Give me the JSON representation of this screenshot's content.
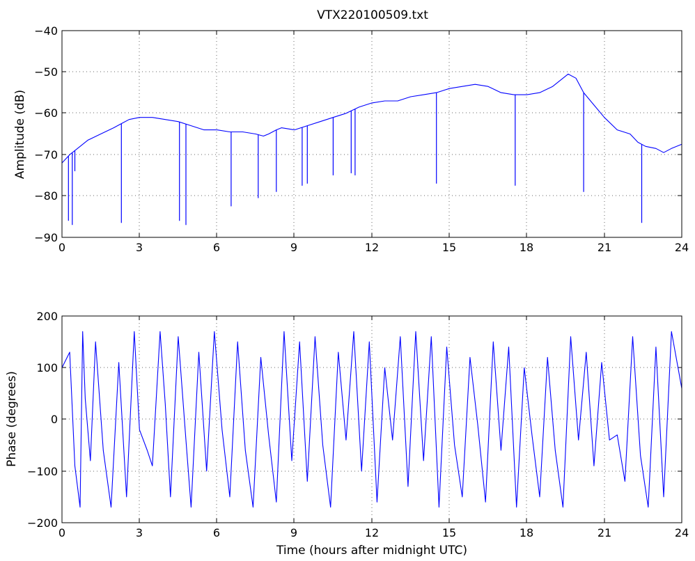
{
  "chart_data": [
    {
      "type": "line",
      "title": "VTX220100509.txt",
      "xlabel": "",
      "ylabel": "Amplitude (dB)",
      "xlim": [
        0,
        24
      ],
      "ylim": [
        -90,
        -40
      ],
      "xticks": [
        "0",
        "3",
        "6",
        "9",
        "12",
        "15",
        "18",
        "21",
        "24"
      ],
      "yticks": [
        "−90",
        "−80",
        "−70",
        "−60",
        "−50",
        "−40"
      ],
      "grid": true,
      "color": "#0000ff",
      "series": [
        {
          "x": [
            0,
            0.3,
            0.6,
            1.0,
            1.5,
            2.0,
            2.3,
            2.6,
            3.0,
            3.5,
            4.0,
            4.5,
            5.0,
            5.5,
            6.0,
            6.5,
            7.0,
            7.5,
            7.8,
            8.0,
            8.3,
            8.5,
            9.0,
            9.5,
            10.0,
            10.5,
            11.0,
            11.5,
            12.0,
            12.5,
            13.0,
            13.5,
            14.0,
            14.5,
            15.0,
            15.5,
            16.0,
            16.5,
            17.0,
            17.5,
            18.0,
            18.5,
            19.0,
            19.3,
            19.6,
            19.9,
            20.2,
            20.6,
            21.0,
            21.5,
            22.0,
            22.3,
            22.6,
            23.0,
            23.3,
            23.6,
            24.0
          ],
          "values": [
            -72,
            -70,
            -68.5,
            -66.5,
            -65,
            -63.5,
            -62.5,
            -61.5,
            -61,
            -61,
            -61.5,
            -62,
            -63,
            -64,
            -64,
            -64.5,
            -64.5,
            -65,
            -65.5,
            -65,
            -64,
            -63.5,
            -64,
            -63,
            -62,
            -61,
            -60,
            -58.5,
            -57.5,
            -57,
            -57,
            -56,
            -55.5,
            -55,
            -54,
            -53.5,
            -53,
            -53.5,
            -55,
            -55.5,
            -55.5,
            -55,
            -53.5,
            -52,
            -50.5,
            -51.5,
            -55,
            -58,
            -61,
            -64,
            -65,
            -67,
            -68,
            -68.5,
            -69.5,
            -68.5,
            -67.5
          ],
          "spikes": [
            [
              0.25,
              -86
            ],
            [
              0.4,
              -87
            ],
            [
              0.5,
              -74
            ],
            [
              2.3,
              -86.5
            ],
            [
              4.55,
              -86
            ],
            [
              4.8,
              -87
            ],
            [
              6.55,
              -82.5
            ],
            [
              7.6,
              -80.5
            ],
            [
              8.3,
              -79
            ],
            [
              9.3,
              -77.5
            ],
            [
              9.5,
              -77
            ],
            [
              10.5,
              -75
            ],
            [
              11.2,
              -74.5
            ],
            [
              11.35,
              -75
            ],
            [
              14.5,
              -77
            ],
            [
              17.55,
              -77.5
            ],
            [
              20.2,
              -79
            ],
            [
              22.45,
              -86.5
            ]
          ]
        }
      ]
    },
    {
      "type": "line",
      "title": "",
      "xlabel": "Time (hours after midnight UTC)",
      "ylabel": "Phase (degrees)",
      "xlim": [
        0,
        24
      ],
      "ylim": [
        -200,
        200
      ],
      "xticks": [
        "0",
        "3",
        "6",
        "9",
        "12",
        "15",
        "18",
        "21",
        "24"
      ],
      "yticks": [
        "−200",
        "−100",
        "0",
        "100",
        "200"
      ],
      "grid": true,
      "color": "#0000ff",
      "series": [
        {
          "x": [
            0,
            0.3,
            0.5,
            0.7,
            0.8,
            0.9,
            1.1,
            1.3,
            1.6,
            1.9,
            2.2,
            2.5,
            2.8,
            3.0,
            3.3,
            3.5,
            3.8,
            4.0,
            4.2,
            4.5,
            4.8,
            5.0,
            5.3,
            5.6,
            5.9,
            6.2,
            6.5,
            6.8,
            7.1,
            7.4,
            7.7,
            8.0,
            8.3,
            8.6,
            8.9,
            9.2,
            9.5,
            9.8,
            10.1,
            10.4,
            10.7,
            11.0,
            11.3,
            11.6,
            11.9,
            12.2,
            12.5,
            12.8,
            13.1,
            13.4,
            13.7,
            14.0,
            14.3,
            14.6,
            14.9,
            15.2,
            15.5,
            15.8,
            16.1,
            16.4,
            16.7,
            17.0,
            17.3,
            17.6,
            17.9,
            18.2,
            18.5,
            18.8,
            19.1,
            19.4,
            19.7,
            20.0,
            20.3,
            20.6,
            20.9,
            21.2,
            21.5,
            21.8,
            22.1,
            22.4,
            22.7,
            23.0,
            23.3,
            23.6,
            24.0
          ],
          "values": [
            100,
            130,
            -90,
            -170,
            170,
            40,
            -80,
            150,
            -60,
            -170,
            110,
            -150,
            170,
            -20,
            -60,
            -90,
            170,
            30,
            -150,
            160,
            -40,
            -170,
            130,
            -100,
            170,
            -20,
            -150,
            150,
            -60,
            -170,
            120,
            -30,
            -160,
            170,
            -80,
            150,
            -120,
            160,
            -50,
            -170,
            130,
            -40,
            170,
            -100,
            150,
            -160,
            100,
            -40,
            160,
            -130,
            170,
            -80,
            160,
            -170,
            140,
            -50,
            -150,
            120,
            -10,
            -160,
            150,
            -60,
            140,
            -170,
            100,
            -30,
            -150,
            120,
            -60,
            -170,
            160,
            -40,
            130,
            -90,
            110,
            -40,
            -30,
            -120,
            160,
            -70,
            -170,
            140,
            -150,
            170,
            60
          ]
        }
      ]
    }
  ]
}
